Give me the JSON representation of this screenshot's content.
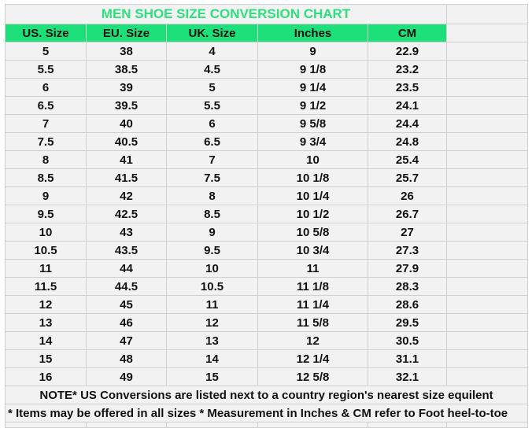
{
  "title": "MEN SHOE SIZE CONVERSION CHART",
  "colors": {
    "header_bg": "#1ee07a",
    "title_text": "#2ee07e",
    "sheet_bg": "#f2f2f2"
  },
  "columns": [
    "US. Size",
    "EU. Size",
    "UK. Size",
    "Inches",
    "CM"
  ],
  "rows": [
    [
      "5",
      "38",
      "4",
      "9",
      "22.9"
    ],
    [
      "5.5",
      "38.5",
      "4.5",
      "9 1/8",
      "23.2"
    ],
    [
      "6",
      "39",
      "5",
      "9 1/4",
      "23.5"
    ],
    [
      "6.5",
      "39.5",
      "5.5",
      "9 1/2",
      "24.1"
    ],
    [
      "7",
      "40",
      "6",
      "9 5/8",
      "24.4"
    ],
    [
      "7.5",
      "40.5",
      "6.5",
      "9 3/4",
      "24.8"
    ],
    [
      "8",
      "41",
      "7",
      "10",
      "25.4"
    ],
    [
      "8.5",
      "41.5",
      "7.5",
      "10 1/8",
      "25.7"
    ],
    [
      "9",
      "42",
      "8",
      "10 1/4",
      "26"
    ],
    [
      "9.5",
      "42.5",
      "8.5",
      "10 1/2",
      "26.7"
    ],
    [
      "10",
      "43",
      "9",
      "10 5/8",
      "27"
    ],
    [
      "10.5",
      "43.5",
      "9.5",
      "10 3/4",
      "27.3"
    ],
    [
      "11",
      "44",
      "10",
      "11",
      "27.9"
    ],
    [
      "11.5",
      "44.5",
      "10.5",
      "11 1/8",
      "28.3"
    ],
    [
      "12",
      "45",
      "11",
      "11 1/4",
      "28.6"
    ],
    [
      "13",
      "46",
      "12",
      "11 5/8",
      "29.5"
    ],
    [
      "14",
      "47",
      "13",
      "12",
      "30.5"
    ],
    [
      "15",
      "48",
      "14",
      "12 1/4",
      "31.1"
    ],
    [
      "16",
      "49",
      "15",
      "12 5/8",
      "32.1"
    ]
  ],
  "notes": [
    "NOTE* US Conversions are listed next to a country region's nearest size equilent",
    "* Items may be offered in all sizes * Measurement in Inches & CM refer to Foot heel-to-toe"
  ]
}
